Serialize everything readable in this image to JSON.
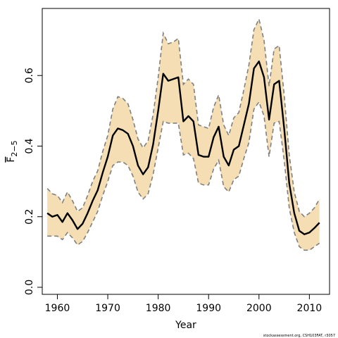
{
  "chart_data": {
    "type": "area",
    "title": "",
    "xlabel": "Year",
    "ylabel": "F",
    "ylabel_subscript": "2−5",
    "xlim": [
      1957,
      2014
    ],
    "ylim": [
      -0.02,
      0.79
    ],
    "xticks": [
      1960,
      1970,
      1980,
      1990,
      2000,
      2010
    ],
    "yticks": [
      0.0,
      0.2,
      0.4,
      0.6
    ],
    "xtick_labels": [
      "1960",
      "1970",
      "1980",
      "1990",
      "2000",
      "2010"
    ],
    "ytick_labels": [
      "0.0",
      "0.2",
      "0.4",
      "0.6"
    ],
    "grid": false,
    "legend": "none",
    "x": [
      1958,
      1959,
      1960,
      1961,
      1962,
      1963,
      1964,
      1965,
      1966,
      1967,
      1968,
      1969,
      1970,
      1971,
      1972,
      1973,
      1974,
      1975,
      1976,
      1977,
      1978,
      1979,
      1980,
      1981,
      1982,
      1983,
      1984,
      1985,
      1986,
      1987,
      1988,
      1989,
      1990,
      1991,
      1992,
      1993,
      1994,
      1995,
      1996,
      1997,
      1998,
      1999,
      2000,
      2001,
      2002,
      2003,
      2004,
      2005,
      2006,
      2007,
      2008,
      2009,
      2010,
      2011,
      2012
    ],
    "series": [
      {
        "role": "estimate",
        "values": [
          0.21,
          0.2,
          0.205,
          0.185,
          0.21,
          0.19,
          0.165,
          0.18,
          0.21,
          0.245,
          0.275,
          0.325,
          0.37,
          0.43,
          0.45,
          0.445,
          0.435,
          0.4,
          0.345,
          0.32,
          0.34,
          0.405,
          0.5,
          0.605,
          0.585,
          0.59,
          0.595,
          0.47,
          0.485,
          0.47,
          0.375,
          0.37,
          0.37,
          0.425,
          0.455,
          0.37,
          0.345,
          0.39,
          0.4,
          0.46,
          0.52,
          0.62,
          0.64,
          0.595,
          0.475,
          0.575,
          0.585,
          0.45,
          0.295,
          0.21,
          0.16,
          0.15,
          0.155,
          0.168,
          0.183
        ]
      },
      {
        "role": "upper",
        "values": [
          0.28,
          0.265,
          0.26,
          0.24,
          0.27,
          0.245,
          0.215,
          0.225,
          0.26,
          0.3,
          0.33,
          0.385,
          0.43,
          0.505,
          0.54,
          0.535,
          0.52,
          0.475,
          0.42,
          0.395,
          0.415,
          0.49,
          0.595,
          0.72,
          0.69,
          0.695,
          0.705,
          0.575,
          0.59,
          0.575,
          0.46,
          0.455,
          0.45,
          0.51,
          0.545,
          0.46,
          0.43,
          0.48,
          0.495,
          0.56,
          0.63,
          0.73,
          0.76,
          0.7,
          0.57,
          0.675,
          0.685,
          0.545,
          0.375,
          0.27,
          0.215,
          0.2,
          0.21,
          0.225,
          0.25
        ]
      },
      {
        "role": "lower",
        "values": [
          0.145,
          0.145,
          0.145,
          0.135,
          0.155,
          0.14,
          0.12,
          0.13,
          0.155,
          0.185,
          0.215,
          0.26,
          0.3,
          0.345,
          0.355,
          0.355,
          0.345,
          0.315,
          0.27,
          0.25,
          0.265,
          0.32,
          0.395,
          0.47,
          0.465,
          0.465,
          0.465,
          0.375,
          0.38,
          0.365,
          0.295,
          0.29,
          0.29,
          0.335,
          0.36,
          0.285,
          0.27,
          0.305,
          0.315,
          0.365,
          0.41,
          0.505,
          0.525,
          0.485,
          0.37,
          0.465,
          0.47,
          0.36,
          0.225,
          0.155,
          0.115,
          0.105,
          0.105,
          0.115,
          0.125
        ]
      }
    ],
    "colors": {
      "band_fill": "#f5deb3",
      "band_border": "#808080",
      "estimate_line": "#000000",
      "axis": "#000000"
    }
  },
  "footer": {
    "credit": "stockassessment.org, CSH103FAT, r3057"
  }
}
